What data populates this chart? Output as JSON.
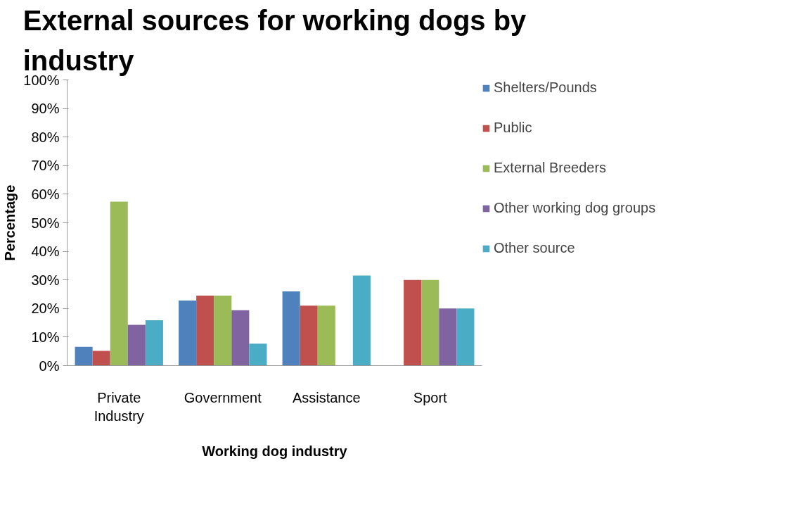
{
  "chart_data": {
    "type": "bar",
    "title": "External sources for working dogs by industry",
    "xlabel": "Working dog industry",
    "ylabel": "Percentage",
    "categories": [
      "Private\nIndustry",
      "Government",
      "Assistance",
      "Sport"
    ],
    "series": [
      {
        "name": "Shelters/Pounds",
        "color": "#4f81bd",
        "values": [
          6.6,
          22.8,
          26.0,
          null
        ]
      },
      {
        "name": "Public",
        "color": "#c0504d",
        "values": [
          5.2,
          24.5,
          21.0,
          30
        ]
      },
      {
        "name": "External Breeders",
        "color": "#9bbb59",
        "values": [
          57.4,
          24.5,
          21.0,
          30
        ]
      },
      {
        "name": "Other working dog groups",
        "color": "#8064a2",
        "values": [
          14.3,
          19.4,
          null,
          20
        ]
      },
      {
        "name": "Other source",
        "color": "#4bacc6",
        "values": [
          15.9,
          7.7,
          31.5,
          20
        ]
      }
    ],
    "ylim": [
      0,
      100
    ],
    "yticks": [
      {
        "value": 0,
        "label": "0%"
      },
      {
        "value": 10,
        "label": "10%"
      },
      {
        "value": 20,
        "label": "20%"
      },
      {
        "value": 30,
        "label": "30%"
      },
      {
        "value": 40,
        "label": "40%"
      },
      {
        "value": 50,
        "label": "50%"
      },
      {
        "value": 60,
        "label": "60%"
      },
      {
        "value": 70,
        "label": "70%"
      },
      {
        "value": 80,
        "label": "80%"
      },
      {
        "value": 90,
        "label": "90%"
      },
      {
        "value": 100,
        "label": "100%"
      }
    ],
    "grid": false,
    "legend": "right"
  }
}
